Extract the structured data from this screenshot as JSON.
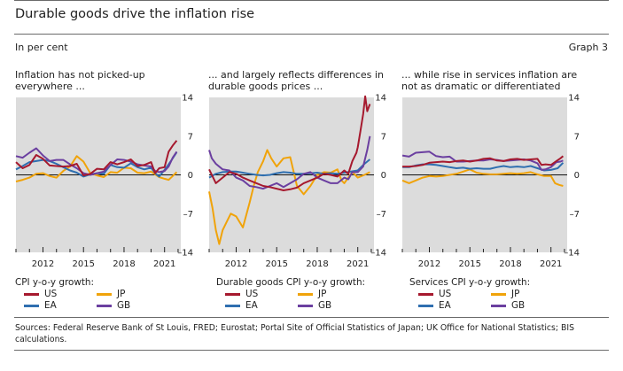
{
  "header": {
    "title": "Durable goods drive the inflation rise",
    "unit": "In per cent",
    "graph_label": "Graph 3"
  },
  "sources": "Sources: Federal Reserve Bank of St Louis, FRED; Eurostat; Portal Site of Official Statistics of Japan; UK Office for National Statistics; BIS calculations.",
  "colors": {
    "US": "#a6192e",
    "EA": "#2f6fb0",
    "JP": "#f0a30a",
    "GB": "#6b3fa0",
    "plot_bg": "#dcdcdc"
  },
  "chart_data": [
    {
      "type": "line",
      "title": "Inflation has not picked-up everywhere ...",
      "legend_title": "CPI y-o-y growth:",
      "xlim": [
        2010,
        2022.2
      ],
      "ylim": [
        -14,
        14
      ],
      "x_ticks": [
        2012,
        2015,
        2018,
        2021
      ],
      "y_ticks": [
        14,
        7,
        0,
        -7,
        -14
      ],
      "series": [
        {
          "name": "US",
          "x": [
            2010,
            2010.5,
            2011,
            2011.5,
            2012,
            2012.5,
            2013,
            2013.5,
            2014,
            2014.5,
            2015,
            2015.5,
            2016,
            2016.5,
            2017,
            2017.5,
            2018,
            2018.5,
            2019,
            2019.5,
            2020,
            2020.3,
            2020.6,
            2021,
            2021.3,
            2021.6,
            2021.9
          ],
          "values": [
            2.3,
            1.2,
            1.8,
            3.6,
            2.9,
            1.7,
            1.6,
            1.5,
            1.6,
            2.0,
            -0.1,
            0.2,
            1.1,
            1.0,
            2.3,
            1.9,
            2.3,
            2.8,
            1.6,
            1.8,
            2.3,
            0.3,
            1.2,
            1.4,
            4.2,
            5.3,
            6.2
          ]
        },
        {
          "name": "EA",
          "x": [
            2010,
            2010.5,
            2011,
            2011.5,
            2012,
            2012.5,
            2013,
            2013.5,
            2014,
            2014.5,
            2015,
            2015.5,
            2016,
            2016.5,
            2017,
            2017.5,
            2018,
            2018.5,
            2019,
            2019.5,
            2020,
            2020.3,
            2020.6,
            2021,
            2021.3,
            2021.6,
            2021.9
          ],
          "values": [
            1.0,
            1.6,
            2.3,
            2.5,
            2.7,
            2.5,
            2.0,
            1.4,
            0.8,
            0.4,
            -0.3,
            0.1,
            0.3,
            0.2,
            1.8,
            1.4,
            1.3,
            2.1,
            1.4,
            1.0,
            1.3,
            0.3,
            -0.3,
            0.9,
            1.9,
            3.0,
            4.1
          ]
        },
        {
          "name": "JP",
          "x": [
            2010,
            2010.5,
            2011,
            2011.5,
            2012,
            2012.5,
            2013,
            2013.5,
            2014,
            2014.5,
            2015,
            2015.5,
            2016,
            2016.5,
            2017,
            2017.5,
            2018,
            2018.5,
            2019,
            2019.5,
            2020,
            2020.3,
            2020.6,
            2021,
            2021.3,
            2021.6,
            2021.9
          ],
          "values": [
            -1.2,
            -0.9,
            -0.5,
            0.2,
            0.3,
            -0.2,
            -0.5,
            0.7,
            1.5,
            3.4,
            2.4,
            0.3,
            -0.1,
            -0.4,
            0.5,
            0.4,
            1.3,
            1.2,
            0.4,
            0.3,
            0.6,
            0.1,
            -0.4,
            -0.7,
            -0.9,
            -0.2,
            0.5
          ]
        },
        {
          "name": "GB",
          "x": [
            2010,
            2010.5,
            2011,
            2011.5,
            2012,
            2012.5,
            2013,
            2013.5,
            2014,
            2014.5,
            2015,
            2015.5,
            2016,
            2016.5,
            2017,
            2017.5,
            2018,
            2018.5,
            2019,
            2019.5,
            2020,
            2020.3,
            2020.6,
            2021,
            2021.3,
            2021.6,
            2021.9
          ],
          "values": [
            3.4,
            3.1,
            4.0,
            4.8,
            3.5,
            2.5,
            2.7,
            2.7,
            1.9,
            1.2,
            0.3,
            0.0,
            0.3,
            0.6,
            1.8,
            2.8,
            2.7,
            2.4,
            1.9,
            1.7,
            1.5,
            0.7,
            0.5,
            0.7,
            1.5,
            3.1,
            4.2
          ]
        }
      ]
    },
    {
      "type": "line",
      "title": "... and largely reflects differences in durable goods prices ...",
      "legend_title": "Durable goods CPI y-o-y growth:",
      "xlim": [
        2010,
        2022.2
      ],
      "ylim": [
        -14,
        14
      ],
      "x_ticks": [
        2012,
        2015,
        2018,
        2021
      ],
      "y_ticks": [
        14,
        7,
        0,
        -7,
        -14
      ],
      "series": [
        {
          "name": "US",
          "x": [
            2010,
            2010.5,
            2011,
            2011.5,
            2012,
            2012.5,
            2013,
            2013.5,
            2014,
            2014.5,
            2015,
            2015.5,
            2016,
            2016.5,
            2017,
            2017.5,
            2018,
            2018.5,
            2019,
            2019.5,
            2020,
            2020.3,
            2020.6,
            2020.9,
            2021,
            2021.2,
            2021.4,
            2021.55,
            2021.7,
            2021.9
          ],
          "values": [
            1.0,
            -1.5,
            -0.5,
            0.5,
            0.2,
            -0.5,
            -1.0,
            -1.5,
            -2.0,
            -2.2,
            -2.5,
            -2.8,
            -2.6,
            -2.3,
            -1.5,
            -1.0,
            -0.5,
            0.2,
            0.0,
            -0.3,
            0.8,
            0.2,
            2.5,
            4.0,
            5.0,
            8.0,
            11.0,
            14.2,
            11.5,
            12.8
          ]
        },
        {
          "name": "EA",
          "x": [
            2010,
            2010.5,
            2011,
            2011.5,
            2012,
            2012.5,
            2013,
            2013.5,
            2014,
            2014.5,
            2015,
            2015.5,
            2016,
            2016.5,
            2017,
            2017.5,
            2018,
            2018.5,
            2019,
            2019.5,
            2020,
            2020.5,
            2021,
            2021.5,
            2021.9
          ],
          "values": [
            -0.5,
            0.2,
            0.5,
            0.6,
            0.6,
            0.4,
            0.2,
            0.0,
            -0.1,
            0.0,
            0.3,
            0.5,
            0.4,
            0.2,
            0.2,
            0.3,
            0.4,
            0.2,
            0.3,
            0.2,
            0.4,
            0.6,
            0.8,
            2.0,
            2.8
          ]
        },
        {
          "name": "JP",
          "x": [
            2010,
            2010.25,
            2010.5,
            2010.75,
            2011,
            2011.3,
            2011.6,
            2012,
            2012.5,
            2013,
            2013.3,
            2013.6,
            2014,
            2014.3,
            2014.6,
            2015,
            2015.5,
            2016,
            2016.5,
            2017,
            2017.5,
            2018,
            2018.5,
            2019,
            2019.5,
            2019.8,
            2020,
            2020.3,
            2020.6,
            2021,
            2021.5,
            2021.9
          ],
          "values": [
            -3.0,
            -6.0,
            -10.0,
            -12.5,
            -10.0,
            -8.5,
            -7.0,
            -7.5,
            -9.5,
            -5.0,
            -2.0,
            0.5,
            2.5,
            4.5,
            3.0,
            1.5,
            3.0,
            3.2,
            -2.0,
            -3.5,
            -2.0,
            0.0,
            0.5,
            0.4,
            1.0,
            -1.0,
            -1.5,
            -0.5,
            0.5,
            -0.5,
            0.0,
            0.5
          ]
        },
        {
          "name": "GB",
          "x": [
            2010,
            2010.2,
            2010.5,
            2011,
            2011.5,
            2012,
            2012.5,
            2013,
            2013.5,
            2014,
            2014.5,
            2015,
            2015.5,
            2016,
            2016.5,
            2017,
            2017.5,
            2018,
            2018.5,
            2019,
            2019.5,
            2020,
            2020.3,
            2020.6,
            2021,
            2021.4,
            2021.7,
            2021.9
          ],
          "values": [
            4.5,
            3.0,
            2.0,
            1.0,
            0.8,
            -0.5,
            -1.0,
            -2.0,
            -2.2,
            -2.5,
            -2.0,
            -1.5,
            -2.2,
            -1.5,
            -0.8,
            0.2,
            0.5,
            -0.5,
            -1.0,
            -1.5,
            -1.5,
            -0.5,
            -0.8,
            0.5,
            0.5,
            1.5,
            4.5,
            7.0
          ]
        }
      ]
    },
    {
      "type": "line",
      "title": "... while rise in services inflation are not as dramatic or differentiated",
      "legend_title": "Services CPI y-o-y growth:",
      "xlim": [
        2010,
        2022.2
      ],
      "ylim": [
        -14,
        14
      ],
      "x_ticks": [
        2012,
        2015,
        2018,
        2021
      ],
      "y_ticks": [
        14,
        7,
        0,
        -7,
        -14
      ],
      "series": [
        {
          "name": "US",
          "x": [
            2010,
            2010.5,
            2011,
            2011.5,
            2012,
            2012.5,
            2013,
            2013.5,
            2014,
            2014.5,
            2015,
            2015.5,
            2016,
            2016.5,
            2017,
            2017.5,
            2018,
            2018.5,
            2019,
            2019.5,
            2020,
            2020.3,
            2020.6,
            2021,
            2021.4,
            2021.7,
            2021.9
          ],
          "values": [
            1.5,
            1.5,
            1.6,
            1.8,
            2.2,
            2.3,
            2.4,
            2.3,
            2.5,
            2.6,
            2.4,
            2.6,
            2.9,
            3.0,
            2.6,
            2.5,
            2.8,
            2.9,
            2.7,
            2.8,
            2.9,
            1.8,
            1.9,
            1.8,
            2.5,
            3.0,
            3.4
          ]
        },
        {
          "name": "EA",
          "x": [
            2010,
            2010.5,
            2011,
            2011.5,
            2012,
            2012.5,
            2013,
            2013.5,
            2014,
            2014.5,
            2015,
            2015.5,
            2016,
            2016.5,
            2017,
            2017.5,
            2018,
            2018.5,
            2019,
            2019.5,
            2020,
            2020.5,
            2021,
            2021.5,
            2021.9
          ],
          "values": [
            1.4,
            1.4,
            1.7,
            1.9,
            1.9,
            1.8,
            1.6,
            1.4,
            1.2,
            1.3,
            1.1,
            1.2,
            1.1,
            1.1,
            1.4,
            1.6,
            1.4,
            1.5,
            1.4,
            1.6,
            1.2,
            0.8,
            0.9,
            1.2,
            2.2
          ]
        },
        {
          "name": "JP",
          "x": [
            2010,
            2010.5,
            2011,
            2011.5,
            2012,
            2012.5,
            2013,
            2013.5,
            2014,
            2014.5,
            2015,
            2015.5,
            2016,
            2016.5,
            2017,
            2017.5,
            2018,
            2018.5,
            2019,
            2019.5,
            2020,
            2020.5,
            2021,
            2021.3,
            2021.6,
            2021.9
          ],
          "values": [
            -1.0,
            -1.5,
            -1.0,
            -0.5,
            -0.2,
            -0.3,
            -0.2,
            0.0,
            0.2,
            0.6,
            1.0,
            0.4,
            0.2,
            0.1,
            0.1,
            0.2,
            0.3,
            0.2,
            0.3,
            0.5,
            0.1,
            -0.2,
            -0.2,
            -1.5,
            -1.8,
            -2.0
          ]
        },
        {
          "name": "GB",
          "x": [
            2010,
            2010.5,
            2011,
            2011.5,
            2012,
            2012.5,
            2013,
            2013.5,
            2014,
            2014.5,
            2015,
            2015.5,
            2016,
            2016.5,
            2017,
            2017.5,
            2018,
            2018.5,
            2019,
            2019.5,
            2020,
            2020.3,
            2020.6,
            2021,
            2021.4,
            2021.7,
            2021.9
          ],
          "values": [
            3.5,
            3.3,
            4.0,
            4.1,
            4.2,
            3.4,
            3.2,
            3.3,
            2.4,
            2.4,
            2.5,
            2.6,
            2.6,
            2.8,
            2.7,
            2.5,
            2.6,
            2.7,
            2.8,
            2.6,
            2.1,
            0.9,
            1.0,
            1.4,
            2.3,
            2.4,
            2.6
          ]
        }
      ]
    }
  ]
}
